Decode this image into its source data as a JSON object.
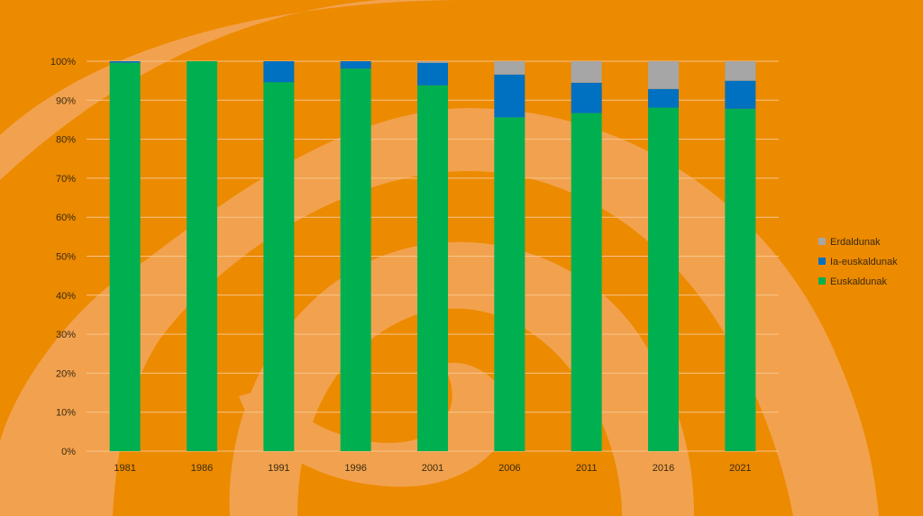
{
  "chart_data": {
    "type": "bar",
    "stacked": true,
    "percent_stacked": true,
    "categories": [
      "1981",
      "1986",
      "1991",
      "1996",
      "2001",
      "2006",
      "2011",
      "2016",
      "2021"
    ],
    "series": [
      {
        "name": "Euskaldunak",
        "color": "#00B050",
        "values": [
          99.6,
          100,
          94.6,
          98.1,
          93.8,
          85.6,
          86.7,
          88.1,
          87.8
        ]
      },
      {
        "name": "Ia-euskaldunak",
        "color": "#0070C0",
        "values": [
          0.4,
          0,
          5.4,
          1.9,
          5.8,
          11.0,
          7.8,
          4.8,
          7.2
        ]
      },
      {
        "name": "Erdaldunak",
        "color": "#A6A6A6",
        "values": [
          0,
          0,
          0,
          0,
          0.4,
          3.4,
          5.5,
          7.1,
          5.0
        ]
      }
    ],
    "yticks": [
      "0%",
      "10%",
      "20%",
      "30%",
      "40%",
      "50%",
      "60%",
      "70%",
      "80%",
      "90%",
      "100%"
    ],
    "ylim": [
      0,
      100
    ],
    "grid": true,
    "legend_position": "right",
    "legend_order": [
      "Erdaldunak",
      "Ia-euskaldunak",
      "Euskaldunak"
    ],
    "title": "",
    "xlabel": "",
    "ylabel": ""
  },
  "colors": {
    "background": "#EC8A00",
    "swirl": "#F2A24E",
    "gridline": "#F6C48A",
    "text": "#3a2a10"
  }
}
